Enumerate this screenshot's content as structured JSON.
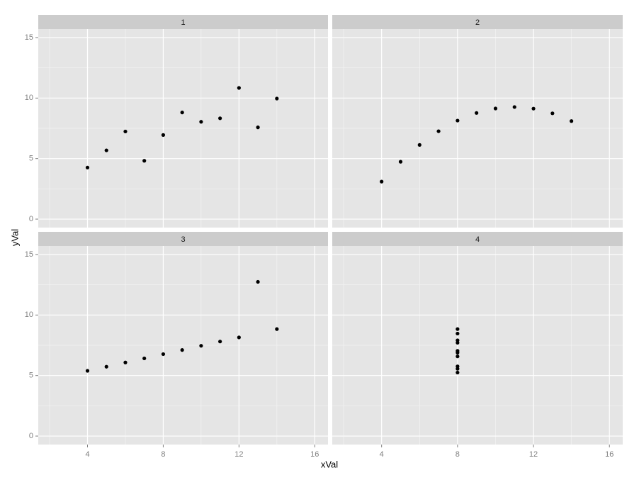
{
  "xlabel": "xVal",
  "ylabel": "yVal",
  "chart_data": [
    {
      "type": "scatter",
      "title": "1",
      "x": [
        10,
        8,
        13,
        9,
        11,
        14,
        6,
        4,
        12,
        7,
        5
      ],
      "y": [
        8.04,
        6.95,
        7.58,
        8.81,
        8.33,
        9.96,
        7.24,
        4.26,
        10.84,
        4.82,
        5.68
      ],
      "xlim": [
        1.4,
        16.7
      ],
      "ylim": [
        -0.7,
        15.7
      ],
      "xticks": [
        4,
        8,
        12,
        16
      ],
      "yticks": [
        0,
        5,
        10,
        15
      ],
      "color": "#000000",
      "grid": true
    },
    {
      "type": "scatter",
      "title": "2",
      "x": [
        10,
        8,
        13,
        9,
        11,
        14,
        6,
        4,
        12,
        7,
        5
      ],
      "y": [
        9.14,
        8.14,
        8.74,
        8.77,
        9.26,
        8.1,
        6.13,
        3.1,
        9.13,
        7.26,
        4.74
      ],
      "xlim": [
        1.4,
        16.7
      ],
      "ylim": [
        -0.7,
        15.7
      ],
      "xticks": [
        4,
        8,
        12,
        16
      ],
      "yticks": [
        0,
        5,
        10,
        15
      ],
      "color": "#000000",
      "grid": true
    },
    {
      "type": "scatter",
      "title": "3",
      "x": [
        10,
        8,
        13,
        9,
        11,
        14,
        6,
        4,
        12,
        7,
        5
      ],
      "y": [
        7.46,
        6.77,
        12.74,
        7.11,
        7.81,
        8.84,
        6.08,
        5.39,
        8.15,
        6.42,
        5.73
      ],
      "xlim": [
        1.4,
        16.7
      ],
      "ylim": [
        -0.7,
        15.7
      ],
      "xticks": [
        4,
        8,
        12,
        16
      ],
      "yticks": [
        0,
        5,
        10,
        15
      ],
      "color": "#000000",
      "grid": true
    },
    {
      "type": "scatter",
      "title": "4",
      "x": [
        8,
        8,
        8,
        8,
        8,
        8,
        8,
        8,
        8,
        8
      ],
      "y": [
        6.58,
        5.76,
        7.71,
        8.84,
        8.47,
        7.04,
        5.25,
        5.56,
        7.91,
        6.89
      ],
      "xlim": [
        1.4,
        16.7
      ],
      "ylim": [
        -0.7,
        15.7
      ],
      "xticks": [
        4,
        8,
        12,
        16
      ],
      "yticks": [
        0,
        5,
        10,
        15
      ],
      "color": "#000000",
      "grid": true
    }
  ]
}
